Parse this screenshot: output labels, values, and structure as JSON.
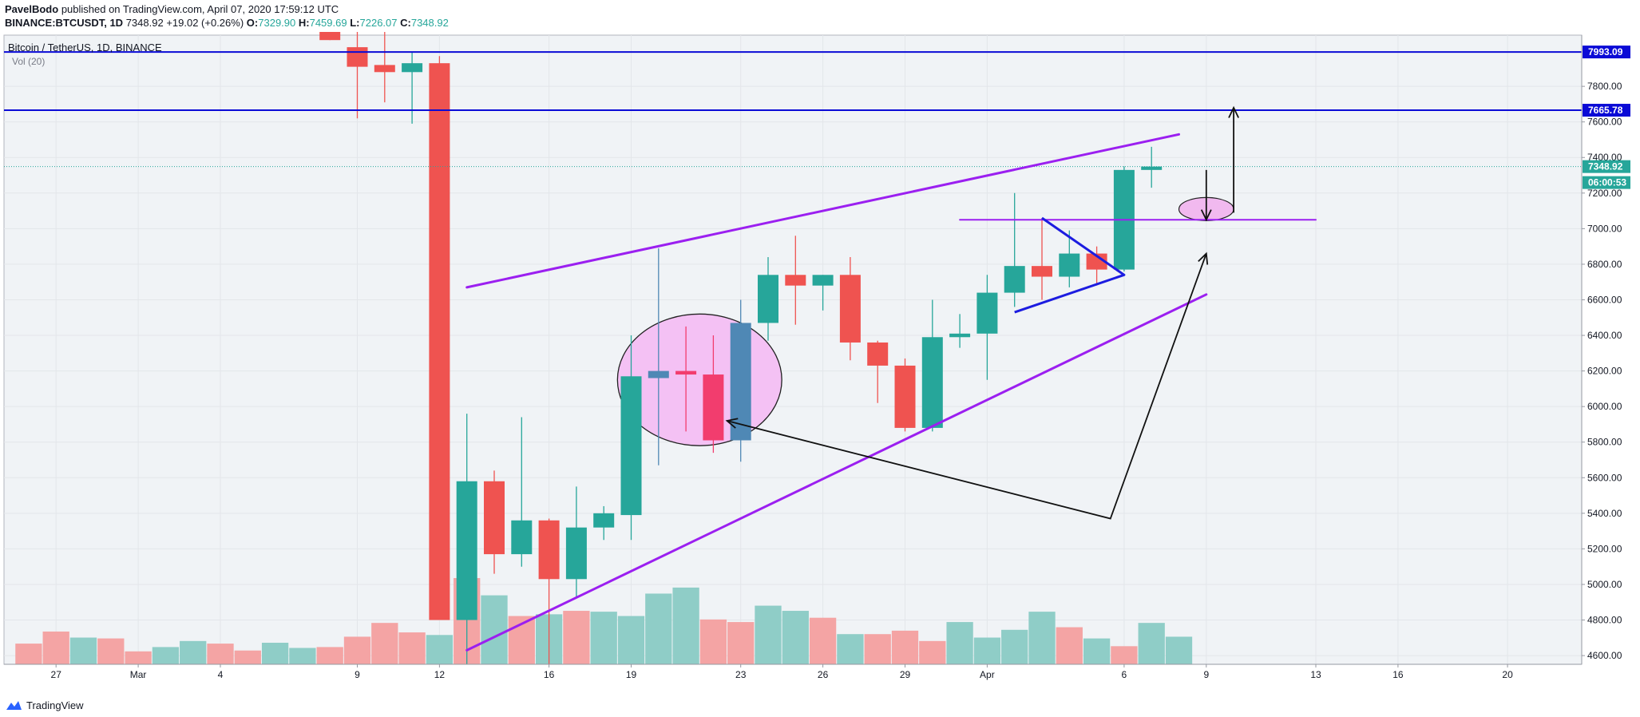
{
  "header": {
    "author": "PavelBodo",
    "published_text": "published on TradingView.com, April 07, 2020 17:59:12 UTC",
    "symbol": "BINANCE:BTCUSDT, 1D",
    "last": "7348.92",
    "change": "+19.02 (+0.26%)",
    "o_label": "O:",
    "o_value": "7329.90",
    "h_label": "H:",
    "h_value": "7459.69",
    "l_label": "L:",
    "l_value": "7226.07",
    "c_label": "C:",
    "c_value": "7348.92"
  },
  "legend": {
    "title": "Bitcoin / TetherUS, 1D, BINANCE",
    "volume_label": "Vol (20)"
  },
  "footer": {
    "brand": "TradingView"
  },
  "colors": {
    "up": "#26a69a",
    "down": "#ef5350",
    "vol_up": "#8fcdc7",
    "vol_down": "#f4a4a4",
    "level": "#0a0ad6",
    "channel": "#9b1ff0",
    "triangle": "#1c1ce0",
    "ellipse_fill": "#f4c1f4",
    "ellipse_fill_small": "#f1b9ef",
    "highlight_up": "#4f88b5",
    "highlight_down": "#f23d6e",
    "background": "#f0f3f6",
    "grid": "#e3e6ea"
  },
  "chart_data": {
    "type": "candlestick",
    "title": "Bitcoin / TetherUS, 1D, BINANCE",
    "symbol": "BINANCE:BTCUSDT",
    "timeframe": "1D",
    "y_axis": {
      "ticks": [
        "4600.00",
        "4800.00",
        "5000.00",
        "5200.00",
        "5400.00",
        "5600.00",
        "5800.00",
        "6000.00",
        "6200.00",
        "6400.00",
        "6600.00",
        "6800.00",
        "7000.00",
        "7200.00",
        "7400.00",
        "7600.00",
        "7800.00"
      ],
      "range": [
        4550,
        8170
      ]
    },
    "x_axis": {
      "ticks": [
        {
          "label": "27",
          "day": -11
        },
        {
          "label": "Mar",
          "day": -8
        },
        {
          "label": "4",
          "day": -5
        },
        {
          "label": "9",
          "day": 0
        },
        {
          "label": "12",
          "day": 3
        },
        {
          "label": "16",
          "day": 7
        },
        {
          "label": "19",
          "day": 10
        },
        {
          "label": "23",
          "day": 14
        },
        {
          "label": "26",
          "day": 17
        },
        {
          "label": "29",
          "day": 20
        },
        {
          "label": "Apr",
          "day": 23
        },
        {
          "label": "6",
          "day": 28
        },
        {
          "label": "9",
          "day": 31
        },
        {
          "label": "13",
          "day": 35
        },
        {
          "label": "16",
          "day": 38
        },
        {
          "label": "20",
          "day": 42
        }
      ]
    },
    "candles": [
      {
        "day": -1,
        "o": 8260,
        "h": 8300,
        "l": 8060,
        "c": 8060
      },
      {
        "day": 0,
        "o": 8020,
        "h": 8170,
        "l": 7620,
        "c": 7910
      },
      {
        "day": 1,
        "o": 7920,
        "h": 8170,
        "l": 7710,
        "c": 7880
      },
      {
        "day": 2,
        "o": 7880,
        "h": 7990,
        "l": 7590,
        "c": 7930
      },
      {
        "day": 3,
        "o": 7930,
        "h": 7970,
        "l": 4800,
        "c": 4800
      },
      {
        "day": 4,
        "o": 4800,
        "h": 5960,
        "l": 4550,
        "c": 5580
      },
      {
        "day": 5,
        "o": 5580,
        "h": 5640,
        "l": 5060,
        "c": 5170
      },
      {
        "day": 6,
        "o": 5170,
        "h": 5940,
        "l": 5100,
        "c": 5360
      },
      {
        "day": 7,
        "o": 5360,
        "h": 5370,
        "l": 4550,
        "c": 5030
      },
      {
        "day": 8,
        "o": 5030,
        "h": 5550,
        "l": 4930,
        "c": 5320
      },
      {
        "day": 9,
        "o": 5320,
        "h": 5440,
        "l": 5250,
        "c": 5400
      },
      {
        "day": 10,
        "o": 5390,
        "h": 6400,
        "l": 5250,
        "c": 6170
      },
      {
        "day": 11,
        "o": 6160,
        "h": 6890,
        "l": 5670,
        "c": 6200,
        "highlight": true
      },
      {
        "day": 12,
        "o": 6200,
        "h": 6450,
        "l": 5860,
        "c": 6180,
        "highlight": true
      },
      {
        "day": 13,
        "o": 6180,
        "h": 6400,
        "l": 5740,
        "c": 5810,
        "highlight": true
      },
      {
        "day": 14,
        "o": 5810,
        "h": 6600,
        "l": 5690,
        "c": 6470,
        "highlight": true
      },
      {
        "day": 15,
        "o": 6470,
        "h": 6840,
        "l": 6370,
        "c": 6740
      },
      {
        "day": 16,
        "o": 6740,
        "h": 6960,
        "l": 6460,
        "c": 6680
      },
      {
        "day": 17,
        "o": 6680,
        "h": 6740,
        "l": 6540,
        "c": 6740
      },
      {
        "day": 18,
        "o": 6740,
        "h": 6840,
        "l": 6260,
        "c": 6360
      },
      {
        "day": 19,
        "o": 6360,
        "h": 6370,
        "l": 6020,
        "c": 6230
      },
      {
        "day": 20,
        "o": 6230,
        "h": 6270,
        "l": 5860,
        "c": 5880
      },
      {
        "day": 21,
        "o": 5880,
        "h": 6600,
        "l": 5860,
        "c": 6390
      },
      {
        "day": 22,
        "o": 6390,
        "h": 6520,
        "l": 6330,
        "c": 6410
      },
      {
        "day": 23,
        "o": 6410,
        "h": 6740,
        "l": 6150,
        "c": 6640
      },
      {
        "day": 24,
        "o": 6640,
        "h": 7200,
        "l": 6560,
        "c": 6790
      },
      {
        "day": 25,
        "o": 6790,
        "h": 7060,
        "l": 6600,
        "c": 6730
      },
      {
        "day": 26,
        "o": 6730,
        "h": 6990,
        "l": 6670,
        "c": 6860
      },
      {
        "day": 27,
        "o": 6860,
        "h": 6900,
        "l": 6680,
        "c": 6770
      },
      {
        "day": 28,
        "o": 6770,
        "h": 7350,
        "l": 6760,
        "c": 7330
      },
      {
        "day": 29,
        "o": 7330,
        "h": 7460,
        "l": 7230,
        "c": 7349
      }
    ],
    "volume": [
      {
        "day": -12,
        "v": 0.24,
        "up": false
      },
      {
        "day": -11,
        "v": 0.38,
        "up": false
      },
      {
        "day": -10,
        "v": 0.31,
        "up": true
      },
      {
        "day": -9,
        "v": 0.3,
        "up": false
      },
      {
        "day": -8,
        "v": 0.15,
        "up": false
      },
      {
        "day": -7,
        "v": 0.2,
        "up": true
      },
      {
        "day": -6,
        "v": 0.27,
        "up": true
      },
      {
        "day": -5,
        "v": 0.24,
        "up": false
      },
      {
        "day": -4,
        "v": 0.16,
        "up": false
      },
      {
        "day": -3,
        "v": 0.25,
        "up": true
      },
      {
        "day": -2,
        "v": 0.19,
        "up": true
      },
      {
        "day": -1,
        "v": 0.2,
        "up": false
      },
      {
        "day": 0,
        "v": 0.32,
        "up": false
      },
      {
        "day": 1,
        "v": 0.48,
        "up": false
      },
      {
        "day": 2,
        "v": 0.37,
        "up": false
      },
      {
        "day": 3,
        "v": 0.34,
        "up": true
      },
      {
        "day": 4,
        "v": 1.0,
        "up": false
      },
      {
        "day": 5,
        "v": 0.8,
        "up": true
      },
      {
        "day": 6,
        "v": 0.56,
        "up": false
      },
      {
        "day": 7,
        "v": 0.58,
        "up": true
      },
      {
        "day": 8,
        "v": 0.62,
        "up": false
      },
      {
        "day": 9,
        "v": 0.61,
        "up": true
      },
      {
        "day": 10,
        "v": 0.56,
        "up": true
      },
      {
        "day": 11,
        "v": 0.82,
        "up": true
      },
      {
        "day": 12,
        "v": 0.89,
        "up": true
      },
      {
        "day": 13,
        "v": 0.52,
        "up": false
      },
      {
        "day": 14,
        "v": 0.49,
        "up": false
      },
      {
        "day": 15,
        "v": 0.68,
        "up": true
      },
      {
        "day": 16,
        "v": 0.62,
        "up": true
      },
      {
        "day": 17,
        "v": 0.54,
        "up": false
      },
      {
        "day": 18,
        "v": 0.35,
        "up": true
      },
      {
        "day": 19,
        "v": 0.35,
        "up": false
      },
      {
        "day": 20,
        "v": 0.39,
        "up": false
      },
      {
        "day": 21,
        "v": 0.27,
        "up": false
      },
      {
        "day": 22,
        "v": 0.49,
        "up": true
      },
      {
        "day": 23,
        "v": 0.31,
        "up": true
      },
      {
        "day": 24,
        "v": 0.4,
        "up": true
      },
      {
        "day": 25,
        "v": 0.61,
        "up": true
      },
      {
        "day": 26,
        "v": 0.43,
        "up": false
      },
      {
        "day": 27,
        "v": 0.3,
        "up": true
      },
      {
        "day": 28,
        "v": 0.21,
        "up": false
      },
      {
        "day": 29,
        "v": 0.48,
        "up": true
      },
      {
        "day": 30,
        "v": 0.32,
        "up": true
      }
    ],
    "horizontal_levels": [
      {
        "price": 7993.09,
        "label": "7993.09"
      },
      {
        "price": 7665.78,
        "label": "7665.78"
      }
    ],
    "last_price": {
      "price": 7348.92,
      "label": "7348.92",
      "countdown": "06:00:53"
    },
    "drawings": {
      "channel_upper": [
        {
          "day": 4,
          "price": 6670
        },
        {
          "day": 30,
          "price": 7530
        }
      ],
      "channel_lower": [
        {
          "day": 4,
          "price": 4630
        },
        {
          "day": 31,
          "price": 6630
        }
      ],
      "support_line": [
        {
          "day": 22,
          "price": 7050
        },
        {
          "day": 35,
          "price": 7050
        }
      ],
      "triangle": [
        {
          "day": 25,
          "price": 7060
        },
        {
          "day": 28,
          "price": 6740
        },
        {
          "day": 24,
          "price": 6530
        }
      ],
      "arrow_polyline": [
        {
          "day": 13.5,
          "price": 5920
        },
        {
          "day": 27.5,
          "price": 5370
        },
        {
          "day": 31,
          "price": 6860
        }
      ],
      "arrow_down": [
        {
          "day": 31,
          "price": 7330
        },
        {
          "day": 31,
          "price": 7050
        }
      ],
      "arrow_up": [
        {
          "day": 32,
          "price": 7090
        },
        {
          "day": 32,
          "price": 7680
        }
      ],
      "big_ellipse": {
        "day": 12.5,
        "price": 6150,
        "rx_days": 3,
        "ry_price": 370
      },
      "small_ellipse": {
        "day": 31,
        "price": 7110,
        "rx_days": 1,
        "ry_price": 65
      }
    }
  }
}
